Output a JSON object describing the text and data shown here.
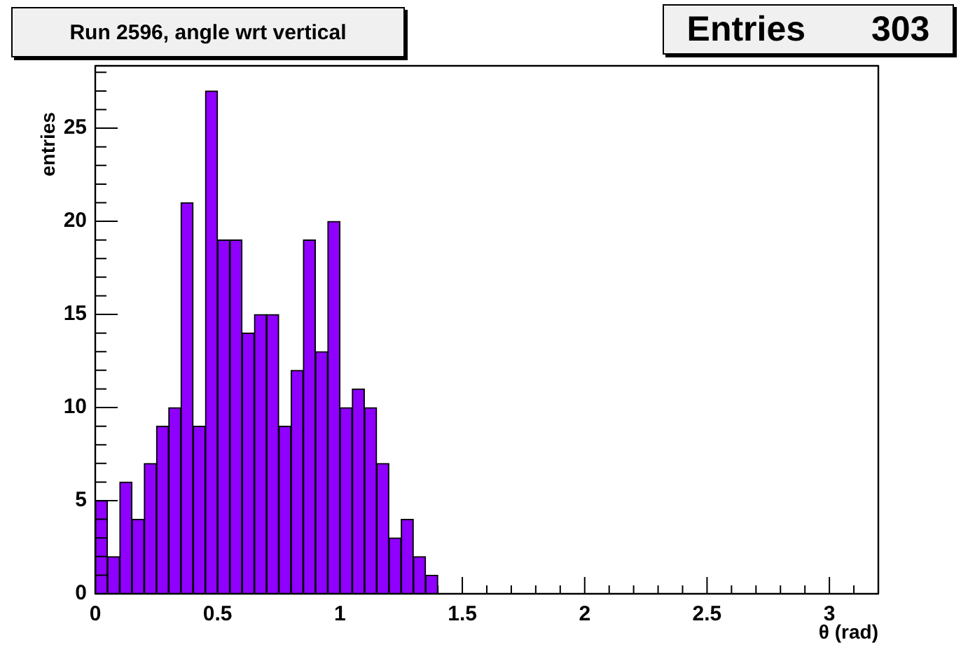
{
  "chart_data": {
    "type": "histogram",
    "title": "Run 2596, angle wrt vertical",
    "xlabel": "θ (rad)",
    "ylabel": "entries",
    "annotations": [
      "Entries 303"
    ],
    "color": "#8f00ff",
    "bins": [
      0,
      0.05,
      0.1,
      0.15,
      0.2,
      0.25,
      0.3,
      0.35,
      0.4,
      0.45,
      0.5,
      0.55,
      0.6,
      0.65,
      0.7,
      0.75,
      0.8,
      0.85,
      0.9,
      0.95,
      1,
      1.05,
      1.1,
      1.15,
      1.2,
      1.25,
      1.3,
      1.35,
      1.4,
      1.45,
      1.5,
      1.55,
      1.6,
      1.65,
      1.7,
      1.75,
      1.8,
      1.85,
      1.9,
      1.95,
      2,
      2.05,
      2.1,
      2.15,
      2.2,
      2.25,
      2.3,
      2.35,
      2.4,
      2.45,
      2.5,
      2.55,
      2.6,
      2.65,
      2.7,
      2.75,
      2.8,
      2.85,
      2.9,
      2.95,
      3,
      3.05,
      3.1,
      3.15,
      3.2
    ],
    "values": [
      5,
      2,
      6,
      4,
      7,
      9,
      10,
      21,
      9,
      27,
      19,
      19,
      14,
      15,
      15,
      9,
      12,
      19,
      13,
      20,
      10,
      11,
      10,
      7,
      3,
      4,
      2,
      1,
      0,
      0,
      0,
      0,
      0,
      0,
      0,
      0,
      0,
      0,
      0,
      0,
      0,
      0,
      0,
      0,
      0,
      0,
      0,
      0,
      0,
      0,
      0,
      0,
      0,
      0,
      0,
      0,
      0,
      0,
      0,
      0,
      0,
      0,
      0,
      0
    ],
    "xlim": [
      0,
      3.2
    ],
    "xticks": [
      0,
      {
        "value": 0.1,
        "label": null
      },
      {
        "value": 0.2,
        "label": null
      },
      {
        "value": 0.3,
        "label": null
      },
      {
        "value": 0.4,
        "label": null
      },
      0.5,
      {
        "value": 0.6,
        "label": null
      },
      {
        "value": 0.7,
        "label": null
      },
      {
        "value": 0.8,
        "label": null
      },
      {
        "value": 0.9,
        "label": null
      },
      1,
      {
        "value": 1.1,
        "label": null
      },
      {
        "value": 1.2,
        "label": null
      },
      {
        "value": 1.3,
        "label": null
      },
      {
        "value": 1.4,
        "label": null
      },
      1.5,
      {
        "value": 1.6,
        "label": null
      },
      {
        "value": 1.7,
        "label": null
      },
      {
        "value": 1.8,
        "label": null
      },
      {
        "value": 1.9,
        "label": null
      },
      2,
      {
        "value": 2.1,
        "label": null
      },
      {
        "value": 2.2,
        "label": null
      },
      {
        "value": 2.3,
        "label": null
      },
      {
        "value": 2.4,
        "label": null
      },
      2.5,
      {
        "value": 2.6,
        "label": null
      },
      {
        "value": 2.7,
        "label": null
      },
      {
        "value": 2.8,
        "label": null
      },
      {
        "value": 2.9,
        "label": null
      },
      3,
      {
        "value": 3.1,
        "label": null
      }
    ],
    "ylim": [
      0,
      28.35
    ],
    "yticks": [
      0,
      {
        "value": 1,
        "label": null
      },
      {
        "value": 2,
        "label": null
      },
      {
        "value": 3,
        "label": null
      },
      {
        "value": 4,
        "label": null
      },
      5,
      {
        "value": 6,
        "label": null
      },
      {
        "value": 7,
        "label": null
      },
      {
        "value": 8,
        "label": null
      },
      {
        "value": 9,
        "label": null
      },
      10,
      {
        "value": 11,
        "label": null
      },
      {
        "value": 12,
        "label": null
      },
      {
        "value": 13,
        "label": null
      },
      {
        "value": 14,
        "label": null
      },
      15,
      {
        "value": 16,
        "label": null
      },
      {
        "value": 17,
        "label": null
      },
      {
        "value": 18,
        "label": null
      },
      {
        "value": 19,
        "label": null
      },
      20,
      {
        "value": 21,
        "label": null
      },
      {
        "value": 22,
        "label": null
      },
      {
        "value": 23,
        "label": null
      },
      {
        "value": 24,
        "label": null
      },
      25,
      {
        "value": 26,
        "label": null
      },
      {
        "value": 27,
        "label": null
      },
      {
        "value": 28,
        "label": null
      }
    ]
  }
}
